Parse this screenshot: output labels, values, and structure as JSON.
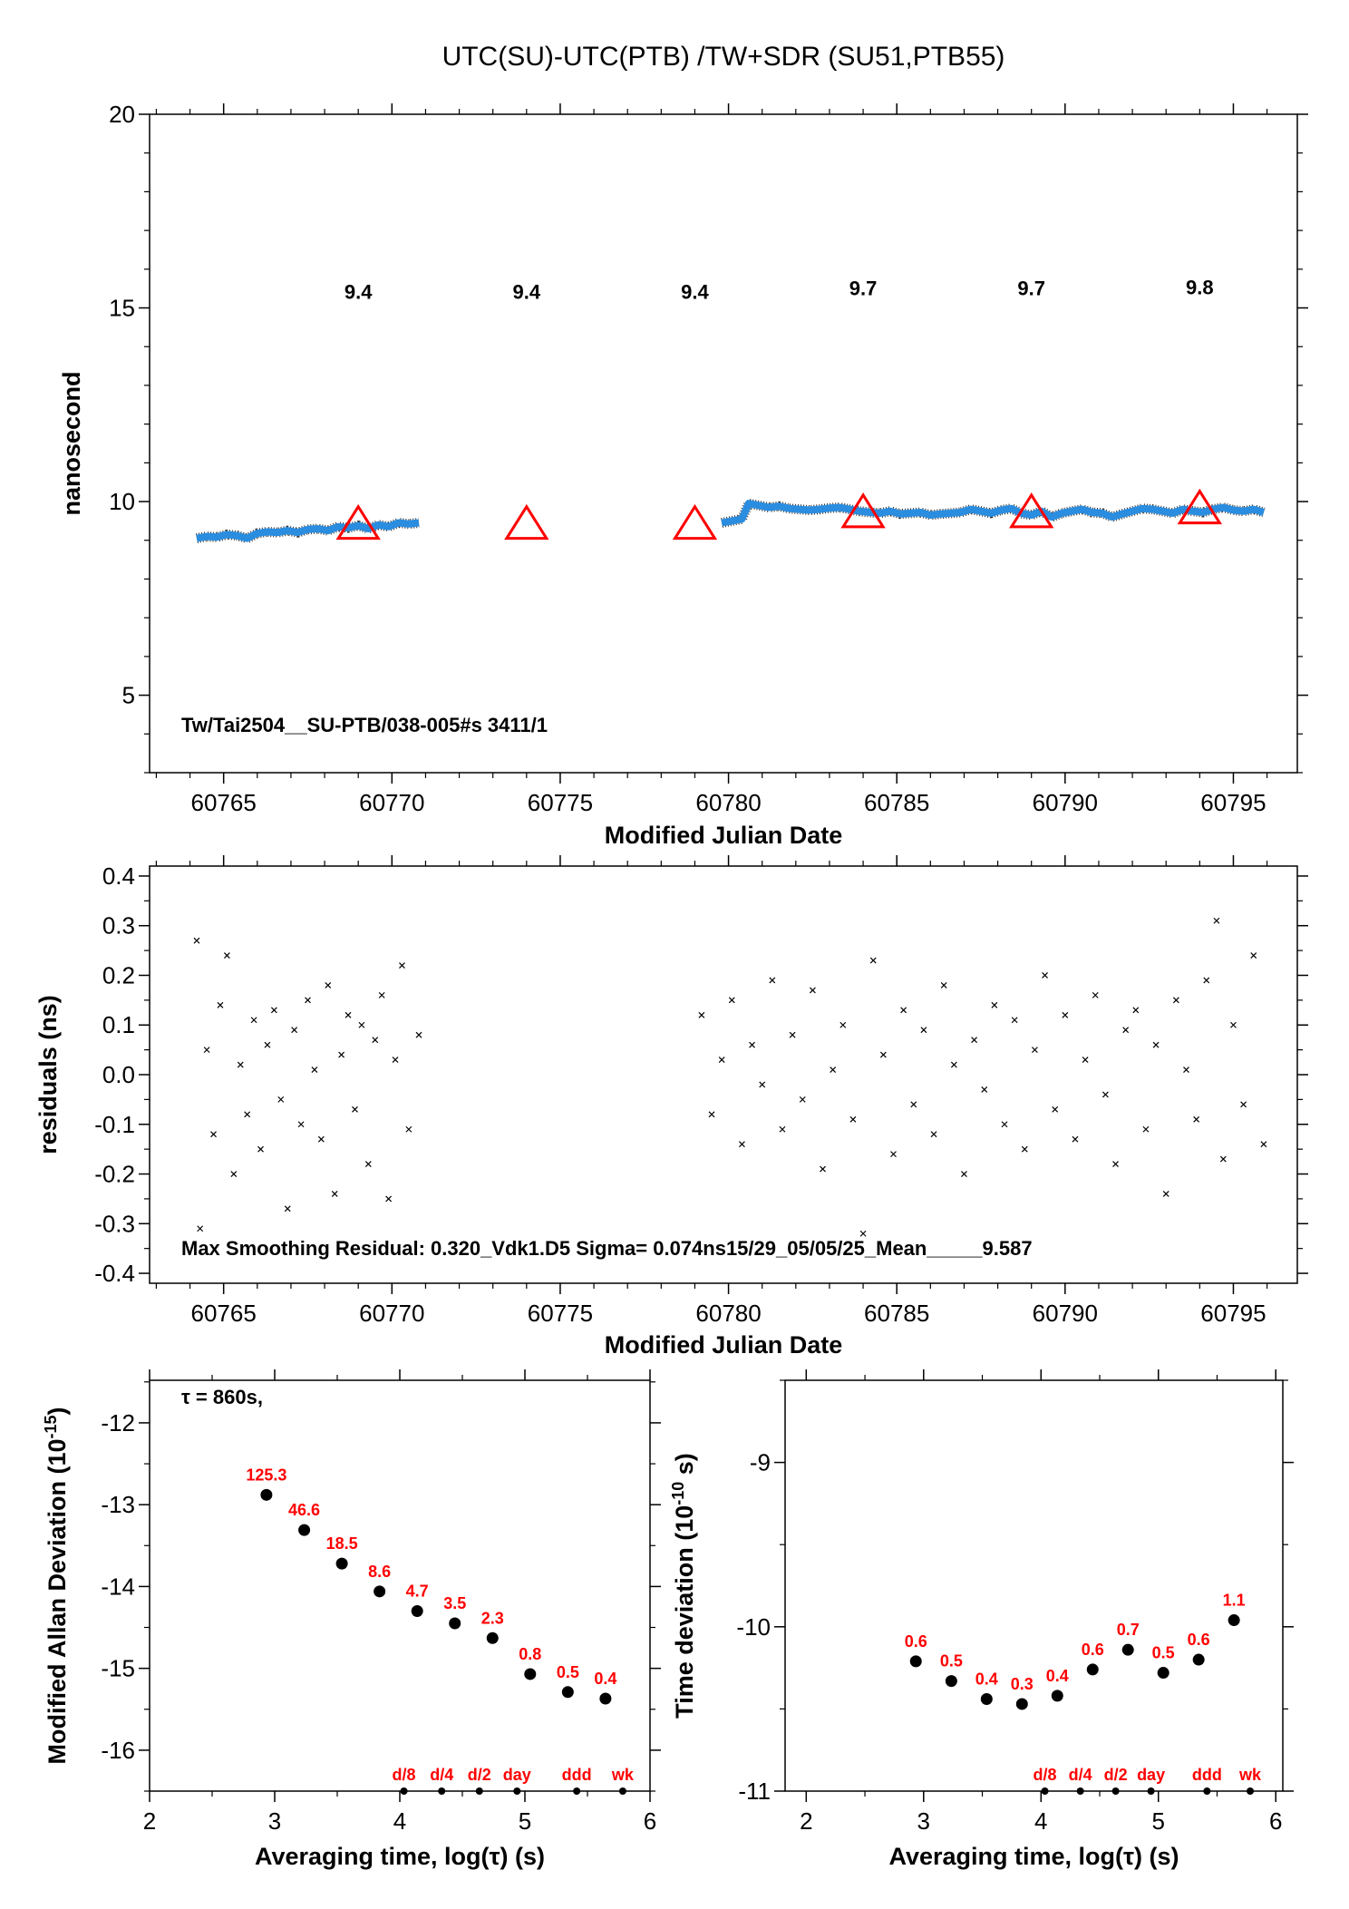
{
  "title": "UTC(SU)-UTC(PTB)  /TW+SDR  (SU51,PTB55)",
  "chart_data": [
    {
      "type": "line",
      "xlabel": "Modified Julian Date",
      "ylabel": "nanosecond",
      "annotation": "Tw/Tai2504__SU-PTB/038-005#s  3411/1",
      "xlim": [
        60762.8,
        60796.9
      ],
      "ylim": [
        3,
        20
      ],
      "xticks": [
        60765,
        60770,
        60775,
        60780,
        60785,
        60790,
        60795
      ],
      "yticks": [
        5,
        10,
        15,
        20
      ],
      "series": [
        {
          "color": "#2a8de0",
          "marker": "line",
          "x": [
            60764.2,
            60764.5,
            60764.8,
            60765.1,
            60765.4,
            60765.7,
            60766,
            60766.3,
            60766.6,
            60766.9,
            60767.2,
            60767.5,
            60767.8,
            60768.1,
            60768.4,
            60768.7,
            60769,
            60769.3,
            60769.6,
            60769.9,
            60770.2,
            60770.5,
            60770.8,
            60775,
            60779.8,
            60780.1,
            60780.4,
            60780.6,
            60780.9,
            60781.2,
            60781.5,
            60781.8,
            60782.1,
            60782.4,
            60782.7,
            60783,
            60783.3,
            60783.6,
            60783.9,
            60784.2,
            60784.5,
            60784.8,
            60785.1,
            60785.4,
            60785.7,
            60786,
            60786.3,
            60786.6,
            60786.9,
            60787.2,
            60787.5,
            60787.8,
            60788.1,
            60788.4,
            60788.7,
            60789,
            60789.3,
            60789.6,
            60789.9,
            60790.2,
            60790.5,
            60790.8,
            60791.1,
            60791.4,
            60791.7,
            60792,
            60792.3,
            60792.6,
            60792.9,
            60793.2,
            60793.5,
            60793.8,
            60794.1,
            60794.4,
            60794.7,
            60795,
            60795.3,
            60795.6,
            60795.9
          ],
          "values": [
            9.05,
            9.1,
            9.08,
            9.15,
            9.12,
            9.05,
            9.18,
            9.22,
            9.2,
            9.25,
            9.2,
            9.28,
            9.3,
            9.25,
            9.35,
            9.32,
            9.38,
            9.3,
            9.4,
            9.35,
            9.45,
            9.42,
            9.45,
            null,
            9.45,
            9.5,
            9.55,
            9.95,
            9.9,
            9.85,
            9.88,
            9.82,
            9.8,
            9.78,
            9.8,
            9.83,
            9.85,
            9.8,
            9.75,
            9.72,
            9.7,
            9.75,
            9.68,
            9.7,
            9.72,
            9.65,
            9.68,
            9.7,
            9.72,
            9.8,
            9.75,
            9.7,
            9.78,
            9.82,
            9.7,
            9.65,
            9.75,
            9.6,
            9.7,
            9.75,
            9.8,
            9.72,
            9.7,
            9.6,
            9.68,
            9.75,
            9.82,
            9.8,
            9.75,
            9.7,
            9.8,
            9.75,
            9.72,
            9.8,
            9.85,
            9.78,
            9.75,
            9.8,
            9.72
          ]
        },
        {
          "color": "#ff0000",
          "marker": "triangle",
          "x": [
            60769,
            60774,
            60779,
            60784,
            60789,
            60794
          ],
          "values": [
            9.4,
            9.4,
            9.4,
            9.7,
            9.7,
            9.8
          ]
        }
      ]
    },
    {
      "type": "scatter",
      "xlabel": "Modified Julian Date",
      "ylabel": "residuals (ns)",
      "annotation": "Max Smoothing Residual: 0.320_Vdk1.D5  Sigma= 0.074ns15/29_05/05/25_Mean_____9.587",
      "xlim": [
        60762.8,
        60796.9
      ],
      "ylim": [
        -0.42,
        0.42
      ],
      "xticks": [
        60765,
        60770,
        60775,
        60780,
        60785,
        60790,
        60795
      ],
      "yticks": [
        -0.4,
        -0.3,
        -0.2,
        -0.1,
        {
          "value": 0,
          "label": "0.0"
        },
        0.1,
        0.2,
        0.3,
        0.4
      ],
      "color": "#000000",
      "marker": "x",
      "x": [
        60764.2,
        60764.3,
        60764.5,
        60764.7,
        60764.9,
        60765.1,
        60765.3,
        60765.5,
        60765.7,
        60765.9,
        60766.1,
        60766.3,
        60766.5,
        60766.7,
        60766.9,
        60767.1,
        60767.3,
        60767.5,
        60767.7,
        60767.9,
        60768.1,
        60768.3,
        60768.5,
        60768.7,
        60768.9,
        60769.1,
        60769.3,
        60769.5,
        60769.7,
        60769.9,
        60770.1,
        60770.3,
        60770.5,
        60770.8,
        60779.2,
        60779.5,
        60779.8,
        60780.1,
        60780.4,
        60780.7,
        60781,
        60781.3,
        60781.6,
        60781.9,
        60782.2,
        60782.5,
        60782.8,
        60783.1,
        60783.4,
        60783.7,
        60784,
        60784.3,
        60784.6,
        60784.9,
        60785.2,
        60785.5,
        60785.8,
        60786.1,
        60786.4,
        60786.7,
        60787,
        60787.3,
        60787.6,
        60787.9,
        60788.2,
        60788.5,
        60788.8,
        60789.1,
        60789.4,
        60789.7,
        60790,
        60790.3,
        60790.6,
        60790.9,
        60791.2,
        60791.5,
        60791.8,
        60792.1,
        60792.4,
        60792.7,
        60793,
        60793.3,
        60793.6,
        60793.9,
        60794.2,
        60794.5,
        60794.7,
        60795,
        60795.3,
        60795.6,
        60795.9
      ],
      "values": [
        0.27,
        -0.31,
        0.05,
        -0.12,
        0.14,
        0.24,
        -0.2,
        0.02,
        -0.08,
        0.11,
        -0.15,
        0.06,
        0.13,
        -0.05,
        -0.27,
        0.09,
        -0.1,
        0.15,
        0.01,
        -0.13,
        0.18,
        -0.24,
        0.04,
        0.12,
        -0.07,
        0.1,
        -0.18,
        0.07,
        0.16,
        -0.25,
        0.03,
        0.22,
        -0.11,
        0.08,
        0.12,
        -0.08,
        0.03,
        0.15,
        -0.14,
        0.06,
        -0.02,
        0.19,
        -0.11,
        0.08,
        -0.05,
        0.17,
        -0.19,
        0.01,
        0.1,
        -0.09,
        -0.32,
        0.23,
        0.04,
        -0.16,
        0.13,
        -0.06,
        0.09,
        -0.12,
        0.18,
        0.02,
        -0.2,
        0.07,
        -0.03,
        0.14,
        -0.1,
        0.11,
        -0.15,
        0.05,
        0.2,
        -0.07,
        0.12,
        -0.13,
        0.03,
        0.16,
        -0.04,
        -0.18,
        0.09,
        0.13,
        -0.11,
        0.06,
        -0.24,
        0.15,
        0.01,
        -0.09,
        0.19,
        0.31,
        -0.17,
        0.1,
        -0.06,
        0.24,
        -0.14
      ]
    },
    {
      "type": "scatter",
      "xlabel": "Averaging time, log(τ) (s)",
      "ylabel": "Modified Allan Deviation (10",
      "ylabel_sup": "-15",
      "ylabel_end": ")",
      "annotation": "τ = 860s,",
      "xlim": [
        2,
        6
      ],
      "ylim": [
        -16.5,
        -11.48
      ],
      "xticks": [
        2,
        3,
        4,
        5,
        6
      ],
      "yticks": [
        -16,
        -15,
        -14,
        -13,
        -12
      ],
      "color": "#000000",
      "label_color": "#ff0000",
      "marker": "dot",
      "x": [
        2.934,
        3.236,
        3.537,
        3.838,
        4.139,
        4.44,
        4.741,
        5.042,
        5.343,
        5.644
      ],
      "values": [
        -12.88,
        -13.31,
        -13.72,
        -14.06,
        -14.3,
        -14.45,
        -14.63,
        -15.07,
        -15.29,
        -15.37
      ],
      "value_labels": [
        "125.3",
        "46.6",
        "18.5",
        "8.6",
        "4.7",
        "3.5",
        "2.3",
        "0.8",
        "0.5",
        "0.4"
      ],
      "markers": {
        "labels": [
          "d/8",
          "d/4",
          "d/2",
          "day",
          "ddd",
          "wk"
        ],
        "x": [
          4.033,
          4.335,
          4.636,
          4.937,
          5.414,
          5.782
        ]
      }
    },
    {
      "type": "scatter",
      "xlabel": "Averaging time, log(τ) (s)",
      "ylabel": "Time deviation (10",
      "ylabel_sup": "-10",
      "ylabel_end": " s)",
      "xlim": [
        1.82,
        6.06
      ],
      "ylim": [
        -11,
        -8.5
      ],
      "xticks": [
        2,
        3,
        4,
        5,
        6
      ],
      "yticks": [
        -11,
        -10,
        -9
      ],
      "color": "#000000",
      "label_color": "#ff0000",
      "marker": "dot",
      "x": [
        2.934,
        3.236,
        3.537,
        3.838,
        4.139,
        4.44,
        4.741,
        5.042,
        5.343,
        5.644
      ],
      "values": [
        -10.21,
        -10.33,
        -10.44,
        -10.47,
        -10.42,
        -10.26,
        -10.14,
        -10.28,
        -10.2,
        -9.96
      ],
      "value_labels": [
        "0.6",
        "0.5",
        "0.4",
        "0.3",
        "0.4",
        "0.6",
        "0.7",
        "0.5",
        "0.6",
        "1.1"
      ],
      "markers": {
        "labels": [
          "d/8",
          "d/4",
          "d/2",
          "day",
          "ddd",
          "wk"
        ],
        "x": [
          4.033,
          4.335,
          4.636,
          4.937,
          5.414,
          5.782
        ]
      }
    }
  ]
}
